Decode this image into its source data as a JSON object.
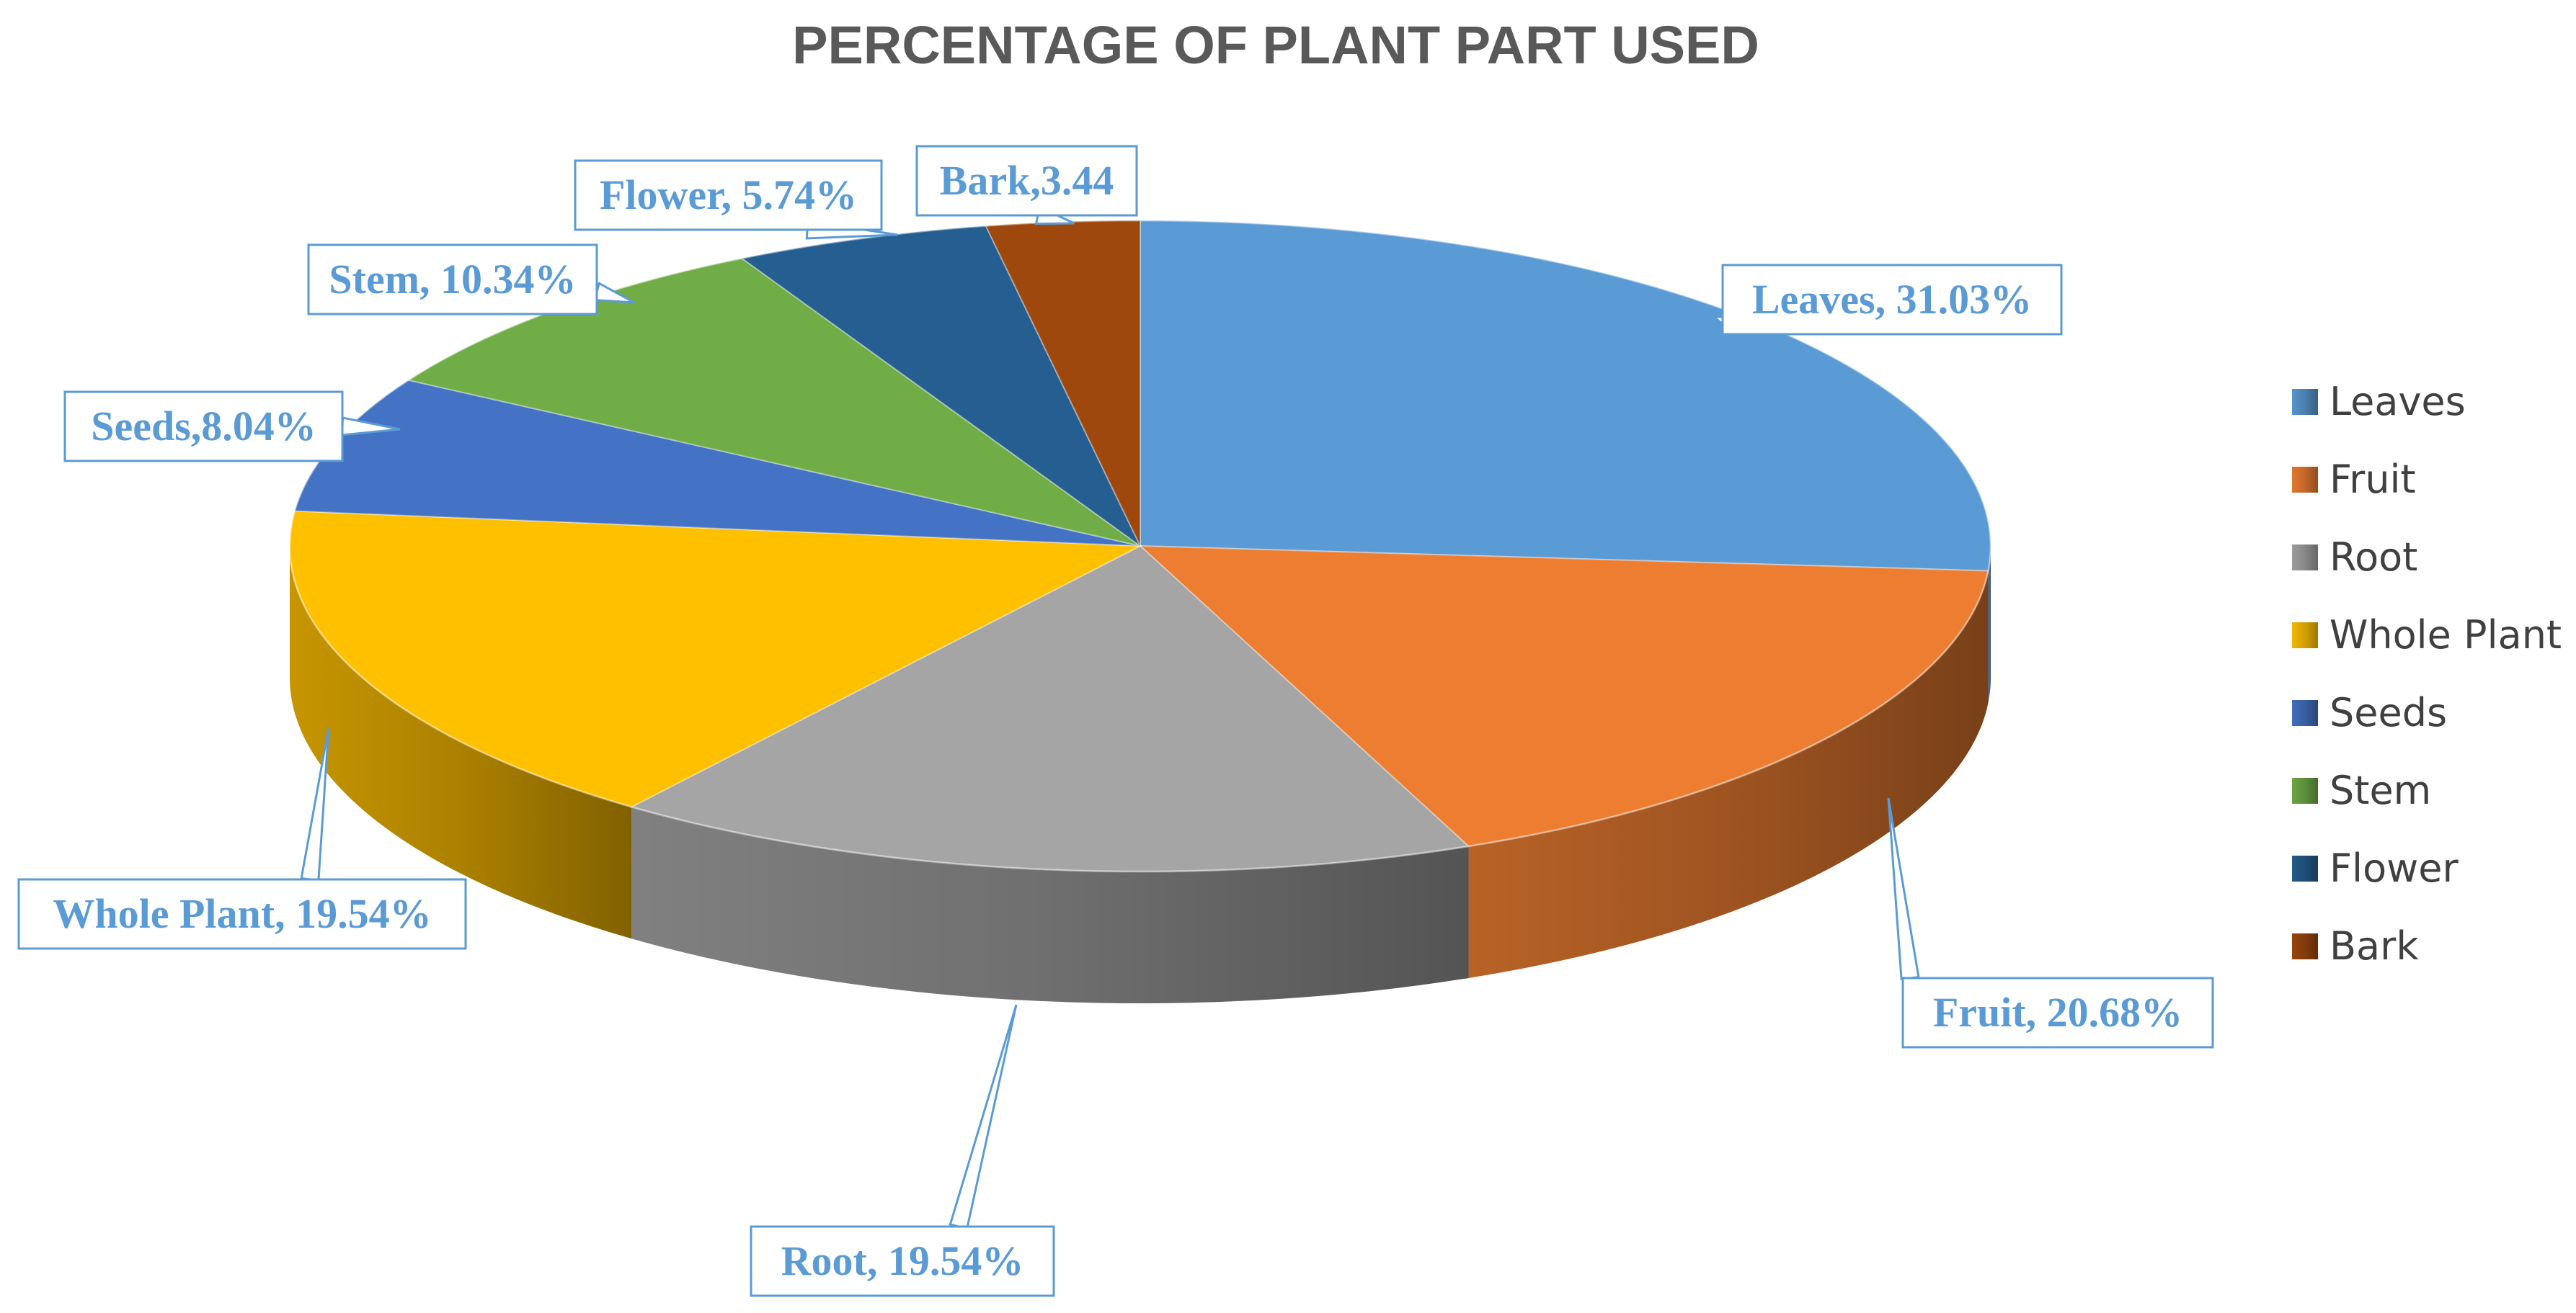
{
  "chart_data": {
    "type": "pie",
    "title": "PERCENTAGE OF PLANT PART USED",
    "categories": [
      "Leaves",
      "Fruit",
      "Root",
      "Whole Plant",
      "Seeds",
      "Stem",
      "Flower",
      "Bark"
    ],
    "values": [
      31.03,
      20.68,
      19.54,
      19.54,
      8.04,
      10.34,
      5.74,
      3.44
    ],
    "data_labels": [
      "Leaves, 31.03%",
      "Fruit, 20.68%",
      "Root, 19.54%",
      "Whole Plant, 19.54%",
      "Seeds,8.04%",
      "Stem, 10.34%",
      "Flower, 5.74%",
      "Bark,3.44"
    ],
    "colors": [
      "#5b9bd5",
      "#ed7d31",
      "#a5a5a5",
      "#ffc000",
      "#4472c4",
      "#70ad47",
      "#255e91",
      "#9e480e"
    ],
    "label_color": "#5b9bd5",
    "style": "3d",
    "legend": {
      "position": "right",
      "entries": [
        "Leaves",
        "Fruit",
        "Root",
        "Whole Plant",
        "Seeds",
        "Stem",
        "Flower",
        "Bark"
      ]
    }
  }
}
